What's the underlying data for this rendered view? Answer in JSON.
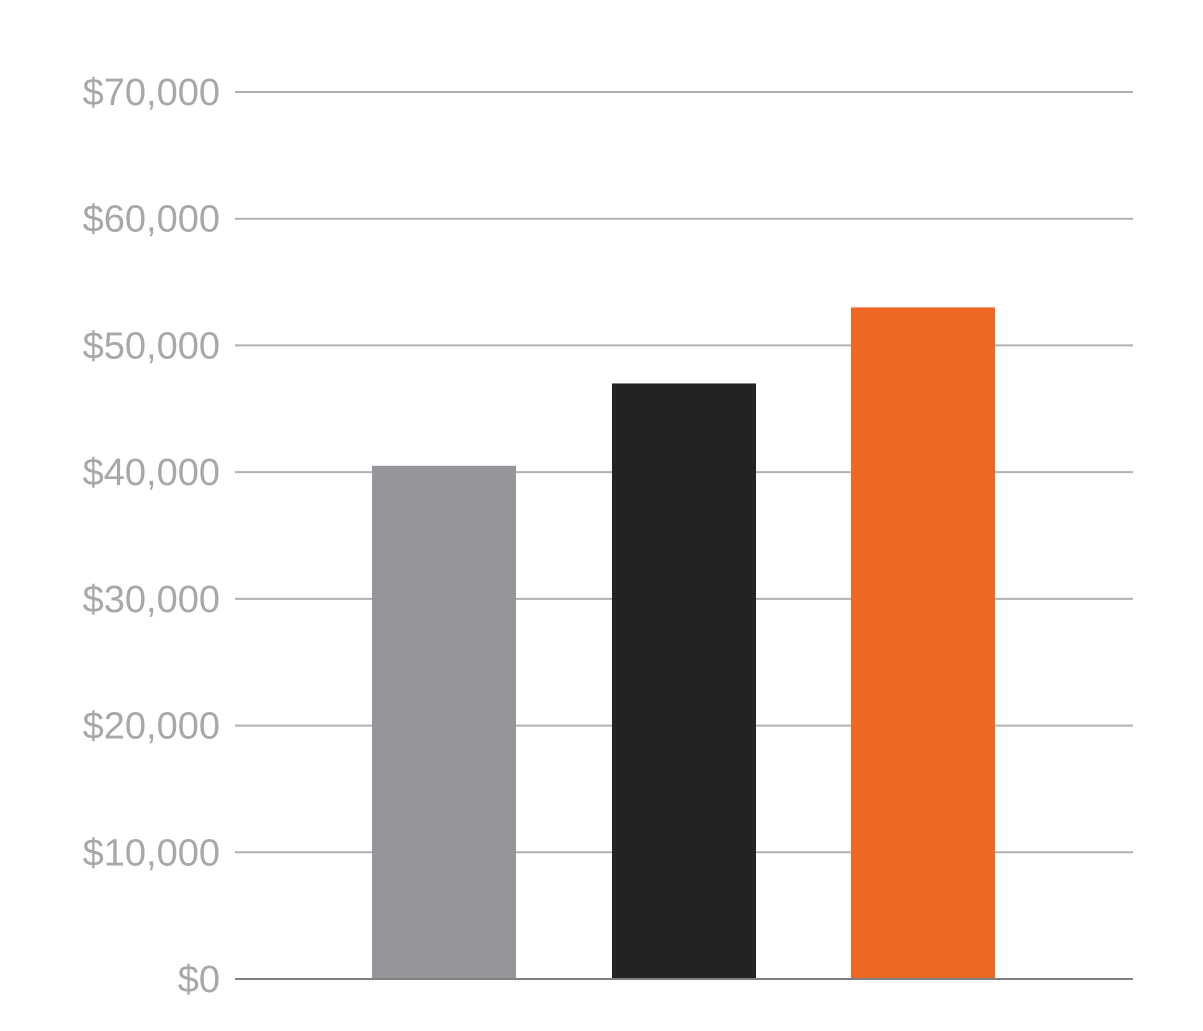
{
  "chart_data": {
    "type": "bar",
    "title": "",
    "xlabel": "",
    "ylabel": "",
    "categories": [
      "",
      "",
      ""
    ],
    "values": [
      40500,
      47000,
      53000
    ],
    "colors": [
      "#969599",
      "#252223",
      "#ee6723"
    ],
    "ylim": [
      0,
      70000
    ],
    "yticks": [
      0,
      10000,
      20000,
      30000,
      40000,
      50000,
      60000,
      70000
    ],
    "ytick_labels": [
      "$0",
      "$10,000",
      "$20,000",
      "$30,000",
      "$40,000",
      "$50,000",
      "$60,000",
      "$70,000"
    ],
    "grid": true,
    "grid_color": "#b0b1b3",
    "axis_color": "#808184",
    "tick_label_color": "#a7a8ab",
    "legend": "none"
  }
}
